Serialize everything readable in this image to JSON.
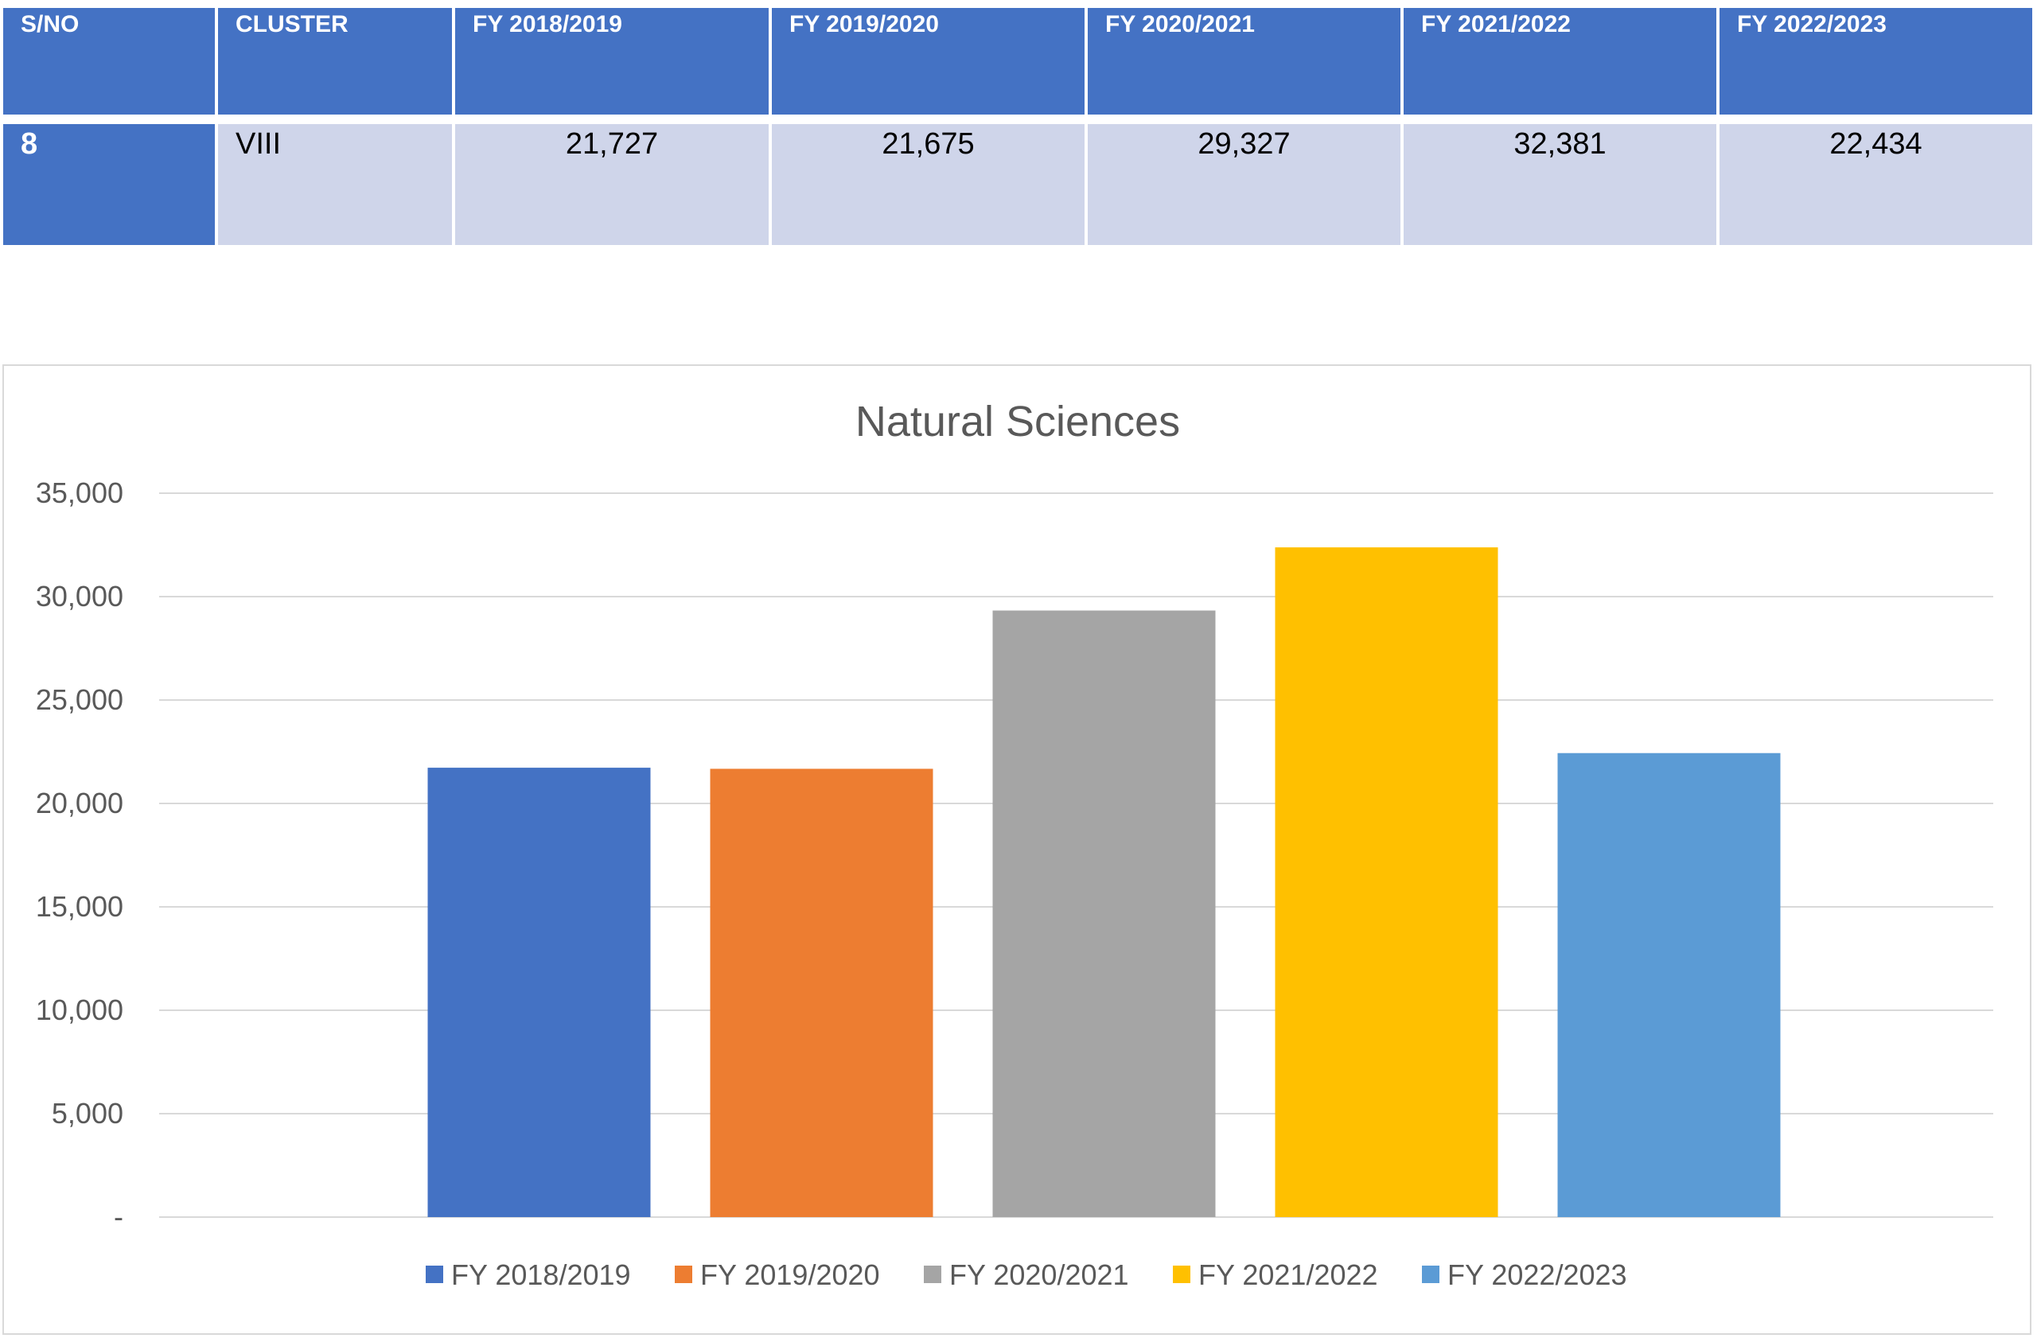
{
  "table": {
    "headers": [
      "S/NO",
      "CLUSTER",
      "FY 2018/2019",
      "FY 2019/2020",
      "FY 2020/2021",
      "FY 2021/2022",
      "FY 2022/2023"
    ],
    "row": {
      "sno": "8",
      "cluster": "VIII",
      "values": [
        "21,727",
        "21,675",
        "29,327",
        "32,381",
        "22,434"
      ]
    }
  },
  "colors": {
    "header_bg": "#4472c4",
    "cell_bg": "#cfd5ea",
    "gridline": "#d9d9d9",
    "text_gray": "#595959"
  },
  "chart_data": {
    "type": "bar",
    "title": "Natural Sciences",
    "xlabel": "",
    "ylabel": "",
    "ylim": [
      0,
      35000
    ],
    "y_ticks": [
      0,
      5000,
      10000,
      15000,
      20000,
      25000,
      30000,
      35000
    ],
    "y_tick_labels": [
      "-",
      "5,000",
      "10,000",
      "15,000",
      "20,000",
      "25,000",
      "30,000",
      "35,000"
    ],
    "grid": true,
    "legend_position": "bottom",
    "series": [
      {
        "name": "FY 2018/2019",
        "value": 21727,
        "color": "#4472c4"
      },
      {
        "name": "FY 2019/2020",
        "value": 21675,
        "color": "#ed7d31"
      },
      {
        "name": "FY 2020/2021",
        "value": 29327,
        "color": "#a5a5a5"
      },
      {
        "name": "FY 2021/2022",
        "value": 32381,
        "color": "#ffc000"
      },
      {
        "name": "FY 2022/2023",
        "value": 22434,
        "color": "#5b9bd5"
      }
    ]
  }
}
